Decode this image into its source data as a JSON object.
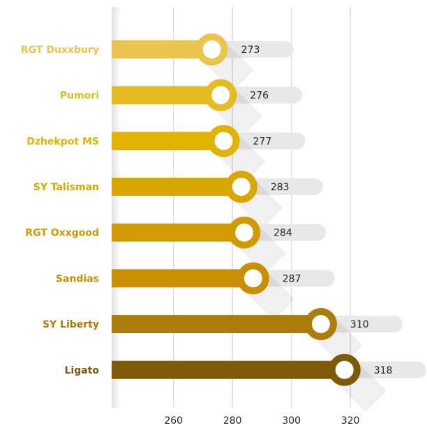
{
  "chart_data": {
    "type": "lollipop-bar",
    "categories": [
      "RGT Duxxbury",
      "Pumori",
      "Dzhekpot MS",
      "SY Talisman",
      "RGT Oxxgood",
      "Sandias",
      "SY Liberty",
      "Ligato"
    ],
    "values": [
      273,
      276,
      277,
      283,
      284,
      287,
      310,
      318
    ],
    "colors": [
      "#ebc44e",
      "#e6bb22",
      "#e2b200",
      "#d9a600",
      "#d09a00",
      "#c98f00",
      "#ad7c0a",
      "#7d5a08"
    ],
    "xlim": [
      239,
      346
    ],
    "xticks": [
      260,
      280,
      300,
      320
    ],
    "grid": true
  }
}
